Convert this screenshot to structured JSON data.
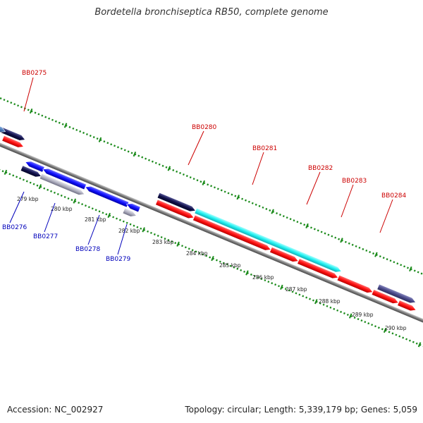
{
  "title": "Bordetella bronchiseptica RB50, complete genome",
  "accession": "Accession: NC_002927",
  "summary": "Topology: circular; Length: 5,339,179 bp; Genes: 5,059",
  "colors": {
    "backbone": "#8a8a8a",
    "tick_marks": "#1a8a1a",
    "label_forward": "#cc0000",
    "label_reverse": "#0000bb",
    "gene_red": "#ff1a1a",
    "gene_blue": "#1a1aff",
    "gene_navy": "#14145a",
    "gene_cyan": "#22f0f0",
    "gene_gray": "#b8b8c8",
    "gene_slate": "#4a4a8a",
    "gene_steel": "#4a7ab8"
  },
  "scale_labels": [
    "279 kbp",
    "280 kbp",
    "281 kbp",
    "282 kbp",
    "283 kbp",
    "284 kbp",
    "285 kbp",
    "286 kbp",
    "287 kbp",
    "288 kbp",
    "289 kbp",
    "290 kbp"
  ],
  "gene_labels_forward": [
    "BB0275",
    "BB0280",
    "BB0281",
    "BB0282",
    "BB0283",
    "BB0284"
  ],
  "gene_labels_reverse": [
    "BB0276",
    "BB0277",
    "BB0278",
    "BB0279"
  ]
}
